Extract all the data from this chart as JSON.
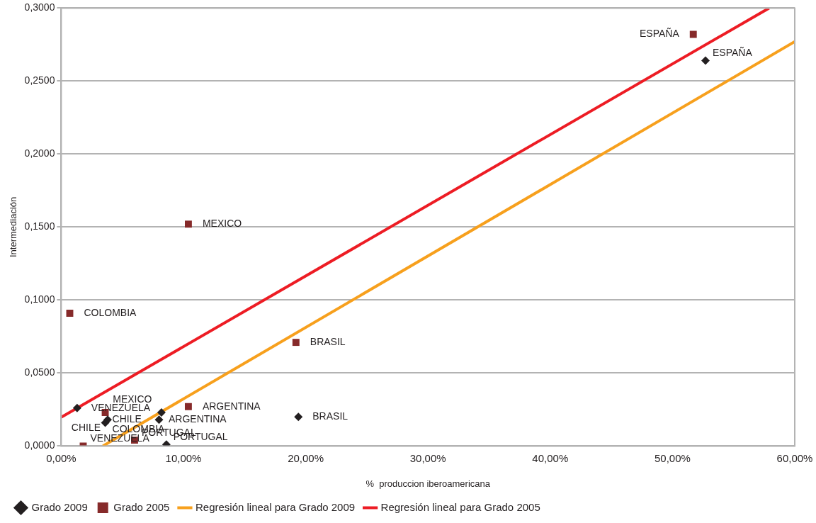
{
  "chart_data": {
    "type": "scatter",
    "xlabel": "%  produccion iberoamericana",
    "ylabel": "Intermediación",
    "xlim": [
      0,
      60
    ],
    "xticks": [
      {
        "value": 0,
        "label": "0,00%"
      },
      {
        "value": 10,
        "label": "10,00%"
      },
      {
        "value": 20,
        "label": "20,00%"
      },
      {
        "value": 30,
        "label": "30,00%"
      },
      {
        "value": 40,
        "label": "40,00%"
      },
      {
        "value": 50,
        "label": "50,00%"
      },
      {
        "value": 60,
        "label": "60,00%"
      }
    ],
    "ylim": [
      0,
      0.3
    ],
    "yticks": [
      {
        "value": 0,
        "label": "0,0000"
      },
      {
        "value": 0.05,
        "label": "0,0500"
      },
      {
        "value": 0.1,
        "label": "0,1000"
      },
      {
        "value": 0.15,
        "label": "0,1500"
      },
      {
        "value": 0.2,
        "label": "0,2000"
      },
      {
        "value": 0.25,
        "label": "0,2500"
      },
      {
        "value": 0.3,
        "label": "0,3000"
      }
    ],
    "grid": "y",
    "legend": "bottom",
    "series": [
      {
        "name": "Grado 2009",
        "marker": "diamond",
        "color": "#231f20",
        "x": [
          1.3,
          3.6,
          3.8,
          8.2,
          8.0,
          8.6,
          19.4,
          52.7
        ],
        "values": [
          0.026,
          0.016,
          0.018,
          0.023,
          0.018,
          0.001,
          0.02,
          0.264
        ]
      },
      {
        "name": "Grado 2005",
        "marker": "square",
        "color": "#862a2a",
        "x": [
          1.8,
          0.7,
          3.6,
          6.0,
          10.4,
          10.4,
          19.2,
          51.7
        ],
        "values": [
          0.0,
          0.091,
          0.023,
          0.004,
          0.027,
          0.152,
          0.071,
          0.282
        ]
      },
      {
        "name": "Regresión lineal para Grado 2009",
        "type": "line",
        "marker": "none",
        "color": "#f7a01d",
        "x": [
          3.4,
          60
        ],
        "values": [
          0,
          0.277
        ]
      },
      {
        "name": "Regresión lineal para Grado 2005",
        "type": "line",
        "marker": "none",
        "color": "#ed1c24",
        "x": [
          0,
          57.9
        ],
        "values": [
          0.0197,
          0.3
        ]
      }
    ],
    "annotations": [
      {
        "text": "VENEZUELA",
        "x": 1.3,
        "y": 0.026
      },
      {
        "text": "COLOMBIA",
        "x": 3.6,
        "y": 0.016
      },
      {
        "text": "CHILE",
        "x": 3.8,
        "y": 0.018
      },
      {
        "text": "ARGENTINA",
        "x": 8.2,
        "y": 0.023
      },
      {
        "text": "MEXICO",
        "x": 8.0,
        "y": 0.018
      },
      {
        "text": "PORTUGAL",
        "x": 8.6,
        "y": 0.001
      },
      {
        "text": "BRASIL",
        "x": 19.4,
        "y": 0.02
      },
      {
        "text": "ESPAÑA",
        "x": 52.7,
        "y": 0.264
      },
      {
        "text": "VENEZUELA",
        "x": 1.8,
        "y": 0.0
      },
      {
        "text": "COLOMBIA",
        "x": 0.7,
        "y": 0.091
      },
      {
        "text": "CHILE",
        "x": 3.6,
        "y": 0.023
      },
      {
        "text": "PORTUGAL",
        "x": 6.0,
        "y": 0.004
      },
      {
        "text": "ARGENTINA",
        "x": 10.4,
        "y": 0.027
      },
      {
        "text": "MEXICO",
        "x": 10.4,
        "y": 0.152
      },
      {
        "text": "BRASIL",
        "x": 19.2,
        "y": 0.071
      },
      {
        "text": "ESPAÑA",
        "x": 51.7,
        "y": 0.282
      }
    ]
  }
}
